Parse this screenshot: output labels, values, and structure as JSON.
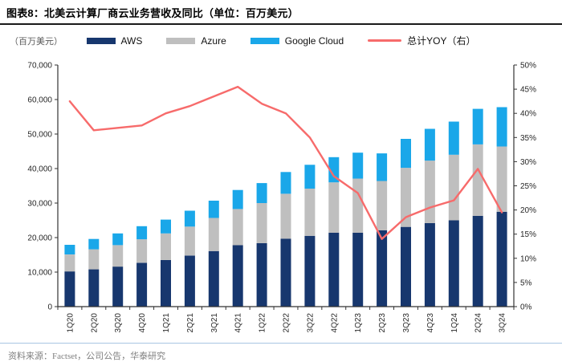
{
  "chart_data": {
    "type": "bar",
    "stacked": true,
    "grid": false,
    "legend_position": "top",
    "title": "图表8：北美云计算厂商云业务营收及同比（单位：百万美元）",
    "categories": [
      "1Q20",
      "2Q20",
      "3Q20",
      "4Q20",
      "1Q21",
      "2Q21",
      "3Q21",
      "4Q21",
      "1Q22",
      "2Q22",
      "3Q22",
      "4Q22",
      "1Q23",
      "2Q23",
      "3Q23",
      "4Q23",
      "1Q24",
      "2Q24",
      "3Q24"
    ],
    "series": [
      {
        "name": "AWS",
        "type": "bar",
        "axis": "left",
        "color": "#17376e",
        "values": [
          10200,
          10800,
          11600,
          12700,
          13500,
          14800,
          16100,
          17800,
          18400,
          19700,
          20500,
          21400,
          21400,
          22100,
          23100,
          24200,
          25000,
          26300,
          27500
        ]
      },
      {
        "name": "Azure",
        "type": "bar",
        "axis": "left",
        "color": "#bfbfbf",
        "values": [
          4900,
          5800,
          6200,
          6800,
          7700,
          8400,
          9600,
          10500,
          11600,
          13000,
          13700,
          14600,
          15700,
          14300,
          17100,
          18100,
          19000,
          20700,
          18900
        ]
      },
      {
        "name": "Google Cloud",
        "type": "bar",
        "axis": "left",
        "color": "#1aa7e9",
        "values": [
          2800,
          3000,
          3400,
          3800,
          4000,
          4600,
          5000,
          5500,
          5800,
          6300,
          6900,
          7300,
          7500,
          8000,
          8400,
          9200,
          9600,
          10300,
          11400
        ]
      },
      {
        "name": "总计YOY（右）",
        "type": "line",
        "axis": "right",
        "color": "#f76b6b",
        "values": [
          42.5,
          36.5,
          37,
          37.5,
          40,
          41.5,
          43.5,
          45.5,
          42,
          40,
          35,
          27,
          23.5,
          14,
          18.5,
          20.5,
          22,
          28.5,
          19.5
        ]
      }
    ],
    "left_axis": {
      "unit_label": "（百万美元）",
      "min": 0,
      "max": 70000,
      "step": 10000
    },
    "right_axis": {
      "min": 0,
      "max": 50,
      "step": 5,
      "suffix": "%"
    }
  },
  "footer": {
    "source": "资料来源：Factset，公司公告，华泰研究"
  }
}
